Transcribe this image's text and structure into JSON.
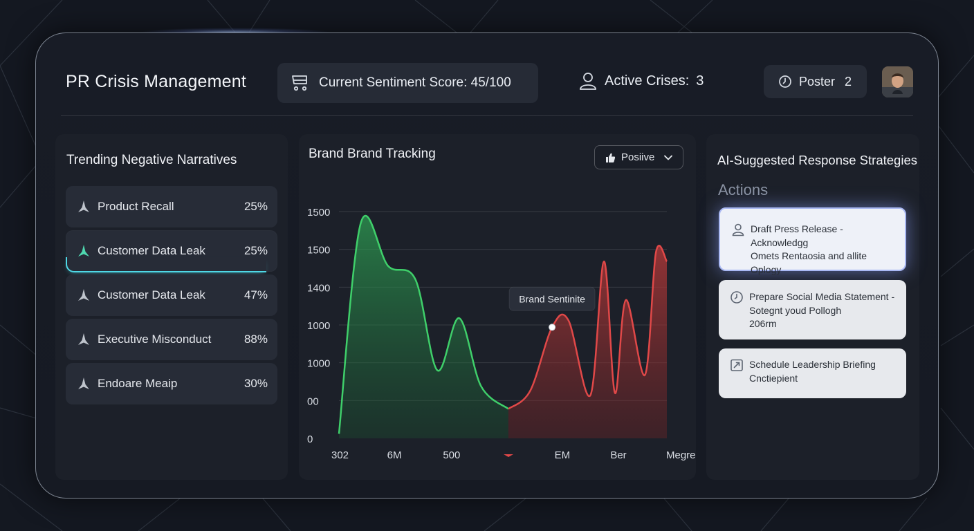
{
  "header": {
    "app_title": "PR Crisis Management",
    "sentiment_score": "Current Sentiment Score: 45/100",
    "active_crises_label": "Active Crises:",
    "active_crises_count": "3",
    "poster_label": "Poster",
    "poster_count": "2"
  },
  "left_panel": {
    "title": "Trending Negative Narratives",
    "items": [
      {
        "label": "Product Recall",
        "pct": "25%",
        "active": false
      },
      {
        "label": "Customer Data Leak",
        "pct": "25%",
        "active": true
      },
      {
        "label": "Customer Data Leak",
        "pct": "47%",
        "active": false
      },
      {
        "label": "Executive Misconduct",
        "pct": "88%",
        "active": false
      },
      {
        "label": "Endoare Meaip",
        "pct": "30%",
        "active": false
      }
    ]
  },
  "middle_panel": {
    "title": "Brand Brand Tracking",
    "dropdown_value": "Posiive",
    "tooltip": "Brand Sentinite"
  },
  "chart_data": {
    "type": "area",
    "title": "Brand Brand Tracking",
    "y_tick_labels": [
      "1500",
      "1500",
      "1400",
      "1000",
      "1000",
      "00",
      "0"
    ],
    "x_tick_labels": [
      "302",
      "6M",
      "500",
      "",
      "EM",
      "Ber",
      "Megre"
    ],
    "series": [
      {
        "name": "",
        "color": "#3fcf6a",
        "x": [
          0,
          0.4,
          0.9,
          1.4,
          1.8,
          2.2,
          2.6,
          3.1
        ],
        "y": [
          0.02,
          0.95,
          0.76,
          0.7,
          0.3,
          0.53,
          0.23,
          0.13
        ]
      },
      {
        "name": "",
        "color": "#e04848",
        "x": [
          3.1,
          3.5,
          3.9,
          4.2,
          4.6,
          4.85,
          5.05,
          5.25,
          5.6,
          5.8,
          6.0
        ],
        "y": [
          0.13,
          0.21,
          0.49,
          0.52,
          0.19,
          0.78,
          0.2,
          0.61,
          0.28,
          0.82,
          0.78
        ]
      }
    ],
    "tooltip_point": {
      "x": 3.9,
      "y": 0.49
    },
    "grid": true,
    "colors": {
      "positive": "#3fcf6a",
      "negative": "#e04848"
    }
  },
  "right_panel": {
    "title": "AI-Suggested Response Strategies",
    "subtitle": "Actions",
    "actions": [
      {
        "icon": "person-icon",
        "line1": "Draft Press Release - Acknowledgg",
        "line2": "Omets Rentaosia and allite",
        "line3": "Oplogy"
      },
      {
        "icon": "clock-icon",
        "line1": "Prepare Social Media Statement -",
        "line2": "Sotegnt youd Pollogh",
        "line3": "206rm"
      },
      {
        "icon": "calendar-icon",
        "line1": "Schedule Leadership Briefing",
        "line2": "Cnctiepient",
        "line3": ""
      }
    ]
  },
  "colors": {
    "accent": "#4fd8e6",
    "background": "#141821"
  }
}
